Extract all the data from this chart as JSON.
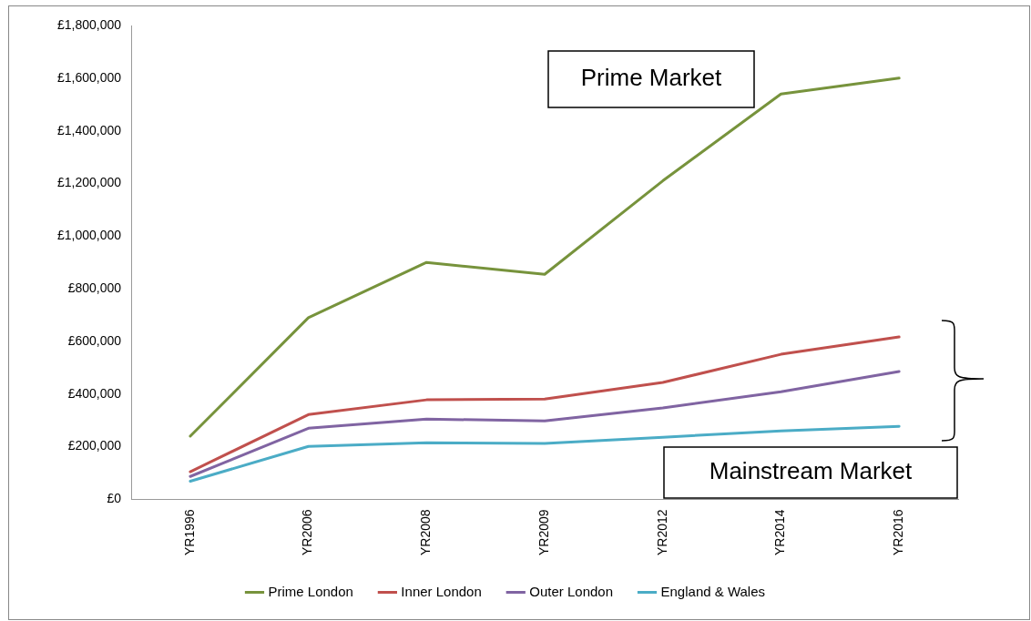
{
  "chart_data": {
    "type": "line",
    "categories": [
      "YR1996",
      "YR2006",
      "YR2008",
      "YR2009",
      "YR2012",
      "YR2014",
      "YR2016"
    ],
    "series": [
      {
        "name": "Prime London",
        "color": "#77933c",
        "values": [
          240000,
          690000,
          900000,
          855000,
          1210000,
          1540000,
          1600000
        ]
      },
      {
        "name": "Inner London",
        "color": "#c0504d",
        "values": [
          105000,
          322000,
          378000,
          381000,
          444000,
          551000,
          617000
        ]
      },
      {
        "name": "Outer London",
        "color": "#8064a2",
        "values": [
          87000,
          270000,
          305000,
          298000,
          347000,
          409000,
          486000
        ]
      },
      {
        "name": "England & Wales",
        "color": "#4bacc6",
        "values": [
          69000,
          201000,
          215000,
          212000,
          236000,
          260000,
          277000
        ]
      }
    ],
    "ylim": [
      0,
      1800000
    ],
    "yticks": [
      {
        "value": 0,
        "label": "£0"
      },
      {
        "value": 200000,
        "label": "£200,000"
      },
      {
        "value": 400000,
        "label": "£400,000"
      },
      {
        "value": 600000,
        "label": "£600,000"
      },
      {
        "value": 800000,
        "label": "£800,000"
      },
      {
        "value": 1000000,
        "label": "£1,000,000"
      },
      {
        "value": 1200000,
        "label": "£1,200,000"
      },
      {
        "value": 1400000,
        "label": "£1,400,000"
      },
      {
        "value": 1600000,
        "label": "£1,600,000"
      },
      {
        "value": 1800000,
        "label": "£1,800,000"
      }
    ],
    "grid": false,
    "legend": "bottom",
    "marker": "none",
    "line_style": "solid",
    "annotations": [
      "Prime Market",
      "Mainstream Market"
    ]
  }
}
